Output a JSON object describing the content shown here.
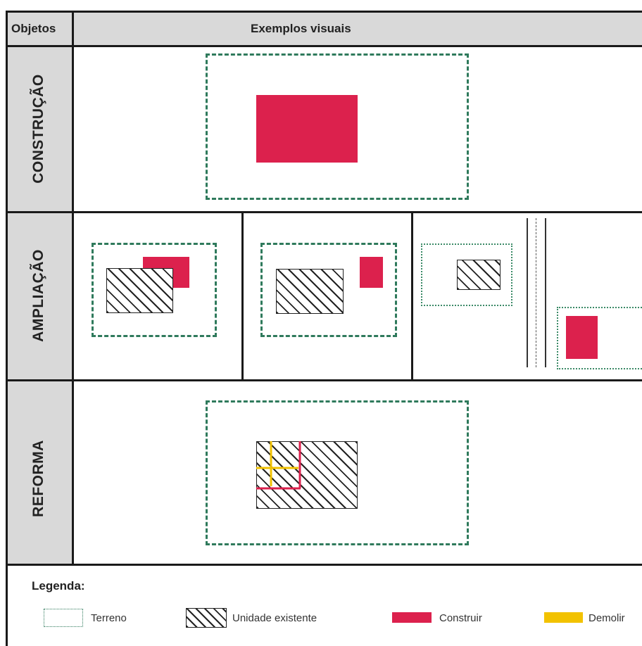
{
  "header": {
    "objects_label": "Objetos",
    "examples_label": "Exemplos visuais"
  },
  "rows": {
    "construcao": "CONSTRUÇÃO",
    "ampliacao": "AMPLIAÇÃO",
    "reforma": "REFORMA"
  },
  "legend": {
    "title": "Legenda:",
    "terreno": "Terreno",
    "unidade_existente": "Unidade existente",
    "construir": "Construir",
    "demolir": "Demolir"
  },
  "colors": {
    "terreno_border": "#2f7a5c",
    "construir": "#dc214d",
    "demolir": "#f2c200",
    "hatch": "#222222",
    "header_bg": "#d9d9d9"
  }
}
